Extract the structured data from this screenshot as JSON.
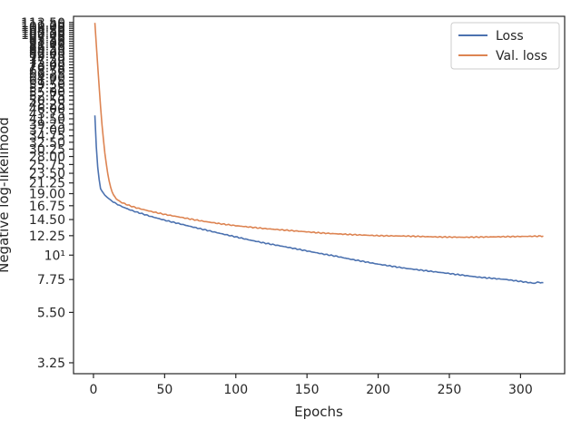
{
  "chart_data": {
    "type": "line",
    "xlabel": "Epochs",
    "ylabel": "Negative log-likelihood",
    "xlim": [
      -14,
      331
    ],
    "ylim": [
      2.9,
      121
    ],
    "yscale": "log",
    "grid": false,
    "legend_position": "top-right",
    "xticks": [
      0,
      50,
      100,
      150,
      200,
      250,
      300
    ],
    "xtick_labels": [
      "0",
      "50",
      "100",
      "150",
      "200",
      "250",
      "300"
    ],
    "yticks": [
      3.25,
      5.5,
      7.75,
      10,
      12.25,
      14.5,
      16.75,
      19.0,
      21.25,
      23.5,
      25.75,
      28.0,
      30.25,
      32.5,
      34.75,
      37.0,
      39.25,
      41.5,
      43.75,
      46.0,
      48.25,
      50.5,
      52.75,
      55.0,
      57.25,
      59.5,
      61.75,
      64.0,
      66.25,
      68.5,
      70.75,
      73.0,
      75.25,
      77.5,
      79.75,
      82.0,
      84.25,
      86.5,
      88.75,
      91.0,
      93.25,
      95.5,
      97.75,
      100.0,
      102.25,
      104.5,
      106.75,
      109.0,
      111.25,
      113.5
    ],
    "ytick_labels": [
      "3.25",
      "5.50",
      "7.75",
      "10¹",
      "12.25",
      "14.50",
      "16.75",
      "19.00",
      "21.25",
      "23.50",
      "25.75",
      "28.00",
      "30.25",
      "32.50",
      "34.75",
      "37.00",
      "39.25",
      "41.50",
      "43.75",
      "46.00",
      "48.25",
      "50.50",
      "52.75",
      "55.00",
      "57.25",
      "59.50",
      "61.75",
      "64.00",
      "66.25",
      "68.50",
      "70.75",
      "73.00",
      "75.25",
      "77.50",
      "79.75",
      "82.00",
      "84.25",
      "86.50",
      "88.75",
      "91.00",
      "93.25",
      "95.50",
      "97.75",
      "100.00",
      "102.25",
      "104.50",
      "106.75",
      "109.00",
      "111.25",
      "113.50"
    ],
    "series": [
      {
        "name": "Loss",
        "color": "#4c72b0",
        "x": [
          1,
          2,
          3,
          4,
          5,
          6,
          8,
          10,
          13,
          16,
          20,
          25,
          30,
          40,
          50,
          60,
          70,
          80,
          90,
          100,
          110,
          120,
          130,
          140,
          150,
          160,
          170,
          180,
          190,
          200,
          210,
          220,
          230,
          240,
          250,
          260,
          270,
          280,
          290,
          300,
          310,
          312,
          314,
          316
        ],
        "y": [
          43,
          31,
          25,
          22,
          20,
          19.5,
          18.7,
          18.2,
          17.6,
          17.1,
          16.6,
          16.1,
          15.7,
          15.0,
          14.4,
          13.9,
          13.4,
          12.95,
          12.5,
          12.1,
          11.7,
          11.35,
          11.05,
          10.75,
          10.45,
          10.15,
          9.9,
          9.6,
          9.35,
          9.1,
          8.9,
          8.7,
          8.55,
          8.4,
          8.25,
          8.1,
          7.95,
          7.85,
          7.75,
          7.6,
          7.45,
          7.55,
          7.5,
          7.5
        ]
      },
      {
        "name": "Val. loss",
        "color": "#dd8452",
        "x": [
          1,
          2,
          3,
          4,
          5,
          6,
          7,
          8,
          9,
          10,
          11,
          12,
          13,
          14,
          16,
          18,
          20,
          25,
          30,
          40,
          50,
          60,
          70,
          80,
          90,
          100,
          120,
          140,
          160,
          180,
          200,
          220,
          240,
          260,
          280,
          300,
          316
        ],
        "y": [
          113,
          90,
          72,
          58,
          47,
          39,
          33.5,
          29,
          26,
          23.5,
          21.7,
          20.4,
          19.4,
          18.8,
          18.0,
          17.6,
          17.3,
          16.8,
          16.4,
          15.8,
          15.3,
          14.9,
          14.5,
          14.15,
          13.85,
          13.6,
          13.2,
          12.9,
          12.6,
          12.4,
          12.25,
          12.2,
          12.1,
          12.05,
          12.1,
          12.15,
          12.2
        ]
      }
    ]
  }
}
